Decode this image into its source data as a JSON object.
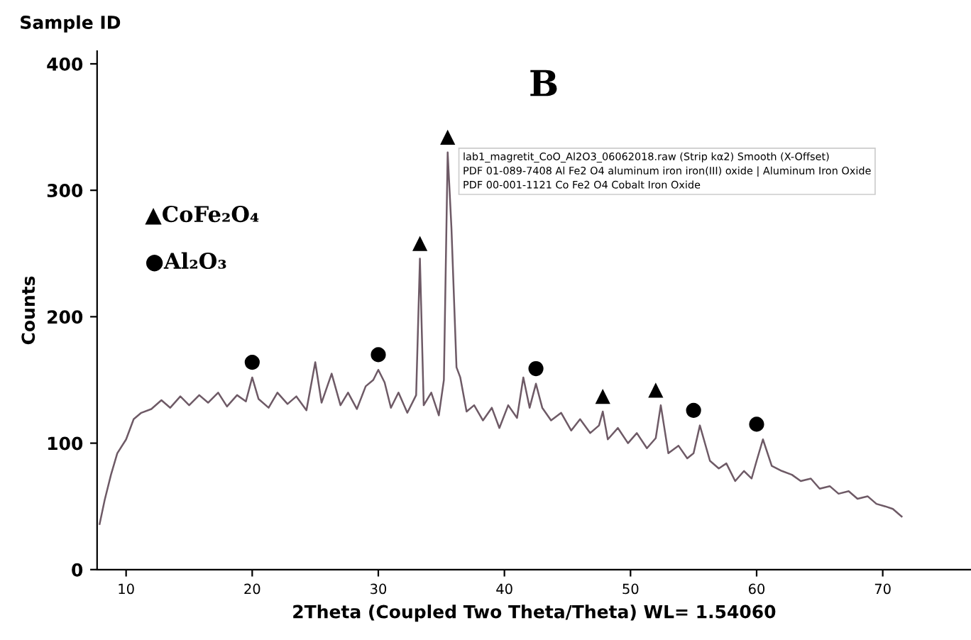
{
  "chart_data": {
    "type": "line",
    "title": "Sample ID",
    "xlabel": "2Theta (Coupled Two Theta/Theta) WL= 1.54060",
    "ylabel": "Counts",
    "xlim": [
      7.7,
      77
    ],
    "ylim": [
      0,
      410
    ],
    "xticks": [
      10,
      20,
      30,
      40,
      50,
      60,
      70
    ],
    "yticks": [
      0,
      100,
      200,
      300,
      400
    ],
    "grid": false,
    "legend": false,
    "marker": "none",
    "line_style": "solid",
    "series": [
      {
        "color": "#6e5a66",
        "x": [
          7.9,
          8.3,
          8.8,
          9.3,
          10,
          10.6,
          11.2,
          12,
          12.8,
          13.5,
          14.3,
          15,
          15.8,
          16.5,
          17.3,
          18,
          18.8,
          19.5,
          20,
          20.5,
          21.3,
          22,
          22.8,
          23.5,
          24.3,
          25,
          25.5,
          26.3,
          27,
          27.6,
          28.3,
          29,
          29.6,
          30,
          30.5,
          31,
          31.6,
          32.3,
          33,
          33.3,
          33.6,
          34.2,
          34.8,
          35.2,
          35.5,
          35.8,
          36.2,
          36.5,
          37,
          37.6,
          38.3,
          39,
          39.6,
          40.3,
          41,
          41.5,
          42,
          42.5,
          43,
          43.7,
          44.5,
          45.3,
          46,
          46.8,
          47.5,
          47.8,
          48.2,
          49,
          49.8,
          50.5,
          51.3,
          52,
          52.4,
          53,
          53.8,
          54.5,
          55,
          55.5,
          56.3,
          57,
          57.6,
          58.3,
          59,
          59.6,
          60,
          60.5,
          61.2,
          62,
          62.8,
          63.5,
          64.3,
          65,
          65.8,
          66.5,
          67.3,
          68,
          68.8,
          69.5,
          70.2,
          70.8,
          71.5
        ],
        "values": [
          36,
          55,
          75,
          92,
          103,
          119,
          124,
          127,
          134,
          128,
          137,
          130,
          138,
          132,
          140,
          129,
          138,
          133,
          152,
          135,
          128,
          140,
          131,
          137,
          126,
          164,
          132,
          155,
          130,
          140,
          127,
          145,
          150,
          158,
          148,
          128,
          140,
          124,
          138,
          246,
          130,
          140,
          122,
          150,
          330,
          270,
          160,
          152,
          125,
          130,
          118,
          128,
          112,
          130,
          120,
          152,
          128,
          147,
          128,
          118,
          124,
          110,
          119,
          108,
          114,
          125,
          103,
          112,
          100,
          108,
          96,
          104,
          130,
          92,
          98,
          88,
          92,
          114,
          86,
          80,
          84,
          70,
          78,
          72,
          86,
          103,
          82,
          78,
          75,
          70,
          72,
          64,
          66,
          60,
          62,
          56,
          58,
          52,
          50,
          48,
          42
        ]
      }
    ],
    "annotations": [
      {
        "text": "▲",
        "x": 33.3,
        "y": 246
      },
      {
        "text": "▲",
        "x": 35.5,
        "y": 330
      },
      {
        "text": "●",
        "x": 20,
        "y": 152
      },
      {
        "text": "●",
        "x": 30,
        "y": 158
      },
      {
        "text": "●",
        "x": 42.5,
        "y": 147
      },
      {
        "text": "▲",
        "x": 47.8,
        "y": 125
      },
      {
        "text": "▲",
        "x": 52,
        "y": 130
      },
      {
        "text": "●",
        "x": 55,
        "y": 114
      },
      {
        "text": "●",
        "x": 60,
        "y": 103
      },
      "B",
      "▲CoFe₂O₄",
      "●Al₂O₃",
      "lab1_magretit_CoO_Al2O3_06062018.raw (Strip kα2) Smooth (X-Offset)",
      "PDF 01-089-7408 Al Fe2 O4 aluminum iron iron(III) oxide | Aluminum Iron Oxide",
      "PDF 00-001-1121 Co Fe2 O4 Cobalt Iron Oxide"
    ]
  }
}
